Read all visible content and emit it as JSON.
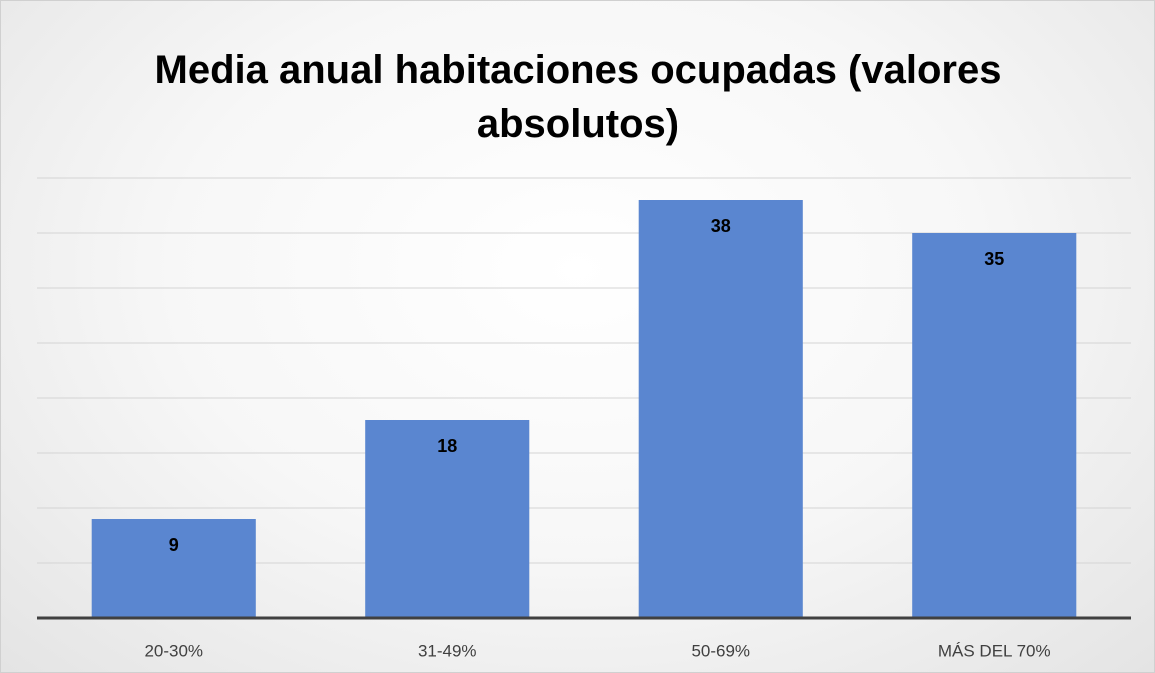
{
  "chart_data": {
    "type": "bar",
    "title": "Media anual habitaciones ocupadas (valores absolutos)",
    "categories": [
      "20-30%",
      "31-49%",
      "50-69%",
      "MÁS DEL 70%"
    ],
    "values": [
      9,
      18,
      38,
      35
    ],
    "color": "#5a86d0",
    "ylim": [
      0,
      40
    ],
    "yticks": [
      0,
      5,
      10,
      15,
      20,
      25,
      30,
      35,
      40
    ],
    "grid": true
  }
}
